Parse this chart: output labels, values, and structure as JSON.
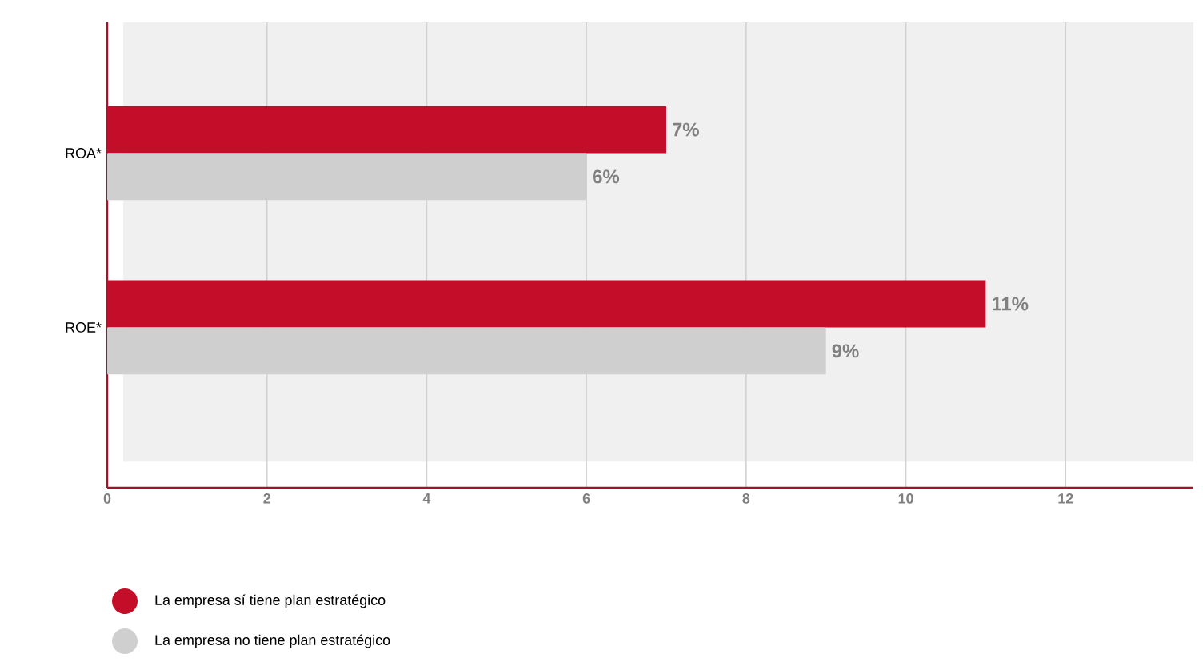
{
  "chart_data": {
    "type": "bar",
    "orientation": "horizontal",
    "categories": [
      "ROA*",
      "ROE*"
    ],
    "series": [
      {
        "name": "La empresa sí tiene plan estratégico",
        "color": "#c40d28",
        "values": [
          7,
          11
        ],
        "value_labels": [
          "7%",
          "11%"
        ]
      },
      {
        "name": "La empresa no tiene plan estratégico",
        "color": "#cfcfcf",
        "values": [
          6,
          9
        ],
        "value_labels": [
          "6%",
          "9%"
        ]
      }
    ],
    "xlim": [
      0,
      13.6
    ],
    "xticks": [
      0,
      2,
      4,
      6,
      8,
      10,
      12
    ],
    "grid": "x",
    "legend": "bottom"
  }
}
